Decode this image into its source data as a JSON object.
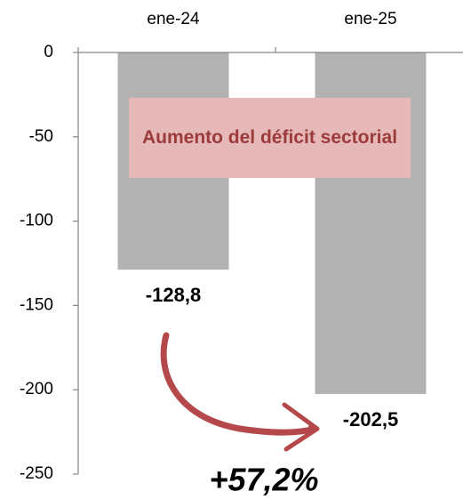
{
  "chart_data": {
    "type": "bar",
    "categories": [
      "ene-24",
      "ene-25"
    ],
    "values": [
      -128.8,
      -202.5
    ],
    "value_labels": [
      "-128,8",
      "-202,5"
    ],
    "color": "#b2b2b2",
    "ylim": [
      0,
      -250
    ],
    "yticks": [
      0,
      -50,
      -100,
      -150,
      -200,
      -250
    ],
    "annotations": [
      {
        "text": "Aumento del déficit sectorial",
        "color": "#e6b8b7"
      },
      {
        "text": "+57,2%",
        "color": "#b5484b"
      }
    ]
  }
}
